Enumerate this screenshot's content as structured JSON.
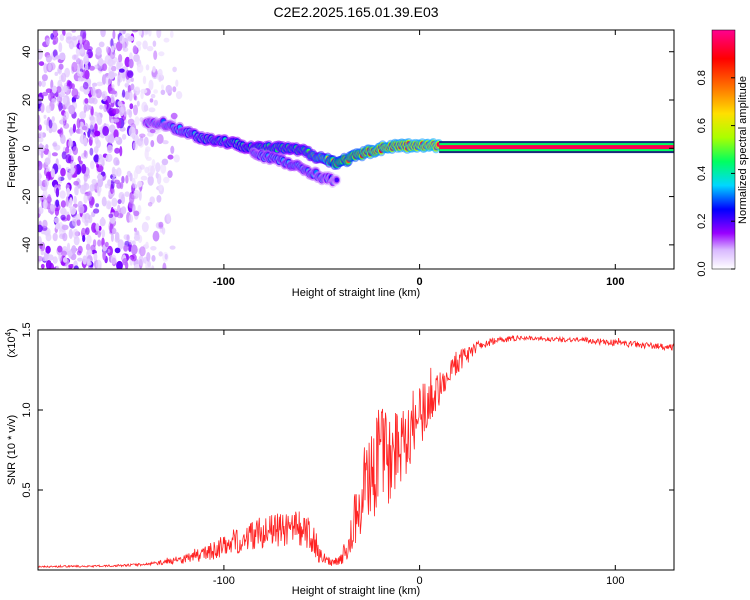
{
  "title": "C2E2.2025.165.01.39.E03",
  "chart_data": [
    {
      "type": "heatmap",
      "name": "spectrogram",
      "xlabel": "Height of straight line (km)",
      "ylabel": "Frequency (Hz)",
      "xlim": [
        -195,
        130
      ],
      "ylim": [
        -50,
        49
      ],
      "xticks": [
        -100,
        0,
        100
      ],
      "yticks": [
        -40,
        -20,
        0,
        20,
        40
      ],
      "colorbar": {
        "label": "Normalized spectral amplitude",
        "range": [
          0.0,
          1.0
        ],
        "ticks": [
          0.0,
          0.2,
          0.4,
          0.6,
          0.8
        ],
        "tick_labels": [
          "0.0",
          "0.2",
          "0.4",
          "0.6",
          "0.8"
        ],
        "colors": [
          "#ffffff",
          "#9900ff",
          "#0000ff",
          "#00d8ff",
          "#00ff60",
          "#aaff00",
          "#ffe000",
          "#ff6000",
          "#ff0000",
          "#ff0090"
        ]
      },
      "ridges": [
        {
          "name": "main-ridge",
          "x": [
            -140,
            -130,
            -120,
            -110,
            -100,
            -90,
            -80,
            -70,
            -60,
            -50,
            -42,
            -35,
            -28,
            -20,
            -12,
            -5,
            0,
            10,
            50,
            130
          ],
          "y": [
            11,
            10,
            7,
            4,
            3,
            1,
            0,
            0,
            -1,
            -4,
            -6,
            -4,
            -2,
            0,
            1,
            1,
            1,
            1,
            0.5,
            0.5
          ],
          "amplitude": [
            0.25,
            0.3,
            0.35,
            0.4,
            0.4,
            0.42,
            0.45,
            0.45,
            0.45,
            0.55,
            0.75,
            0.8,
            0.85,
            0.9,
            0.9,
            0.92,
            0.92,
            0.95,
            0.95,
            0.95
          ]
        },
        {
          "name": "lower-branch",
          "x": [
            -85,
            -75,
            -65,
            -55,
            -50,
            -45,
            -42
          ],
          "y": [
            -2,
            -4,
            -7,
            -10,
            -12,
            -13,
            -14
          ],
          "amplitude": [
            0.3,
            0.35,
            0.35,
            0.32,
            0.3,
            0.25,
            0.2
          ]
        }
      ],
      "noise_region": {
        "x": [
          -195,
          -120
        ],
        "y": [
          -50,
          49
        ],
        "amplitude": [
          0.05,
          0.2
        ]
      }
    },
    {
      "type": "line",
      "name": "snr",
      "xlabel": "Height of straight line (km)",
      "ylabel": "SNR (10 * v/v)",
      "exponent_label": "(x10",
      "exponent": "4",
      "xlim": [
        -195,
        130
      ],
      "ylim": [
        0,
        15000
      ],
      "xticks": [
        -100,
        0,
        100
      ],
      "yticks": [
        5000,
        10000,
        15000
      ],
      "ytick_labels": [
        "0.5",
        "1.0",
        "1.5"
      ],
      "color": "#ff2222",
      "series": [
        {
          "name": "SNR",
          "x": [
            -195,
            -160,
            -140,
            -130,
            -120,
            -110,
            -100,
            -90,
            -80,
            -70,
            -60,
            -55,
            -50,
            -45,
            -40,
            -35,
            -32,
            -28,
            -25,
            -20,
            -15,
            -10,
            -5,
            0,
            5,
            10,
            15,
            20,
            25,
            30,
            40,
            50,
            60,
            70,
            80,
            90,
            100,
            110,
            120,
            130
          ],
          "y": [
            200,
            250,
            350,
            500,
            700,
            1000,
            1500,
            2000,
            2400,
            2500,
            2400,
            2000,
            700,
            500,
            700,
            2000,
            3500,
            5500,
            5500,
            7500,
            7000,
            8000,
            9000,
            9500,
            10500,
            11500,
            12500,
            13000,
            13600,
            14000,
            14400,
            14500,
            14500,
            14400,
            14400,
            14300,
            14200,
            14100,
            14000,
            13900
          ],
          "noise": [
            50,
            60,
            80,
            150,
            300,
            450,
            700,
            900,
            1000,
            1000,
            1200,
            1100,
            400,
            250,
            350,
            1200,
            2200,
            3000,
            3200,
            3000,
            3000,
            2800,
            2500,
            2000,
            1500,
            1200,
            1000,
            700,
            500,
            300,
            200,
            150,
            150,
            150,
            150,
            200,
            200,
            200,
            200,
            200
          ]
        }
      ]
    }
  ]
}
